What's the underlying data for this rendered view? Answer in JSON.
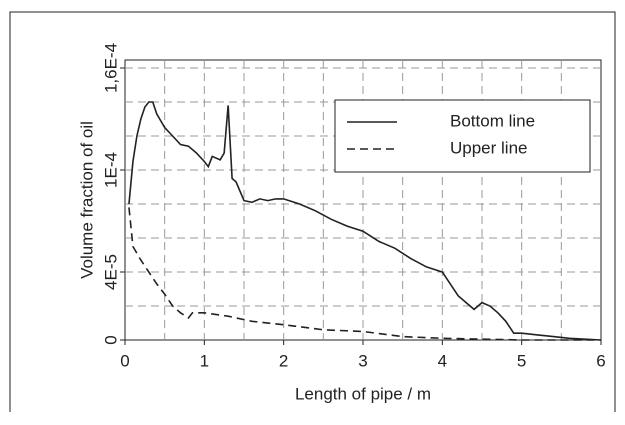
{
  "chart_data": {
    "type": "line",
    "xlabel": "Length of pipe / m",
    "ylabel": "Volume fraction of oil",
    "xlim": [
      0,
      6
    ],
    "xticks": [
      0,
      1,
      2,
      3,
      4,
      5,
      6
    ],
    "xgrid": [
      0.5,
      1,
      1.5,
      2,
      2.5,
      3,
      3.5,
      4,
      4.5,
      5,
      5.5
    ],
    "ylim": [
      0,
      0.00016
    ],
    "yticks": [
      {
        "value": 0,
        "label": "0"
      },
      {
        "value": 4e-05,
        "label": "4E-5"
      },
      {
        "value": 0.0001,
        "label": "1E-4"
      },
      {
        "value": 0.00016,
        "label": "1,6E-4"
      }
    ],
    "ygrid": [
      2e-05,
      4e-05,
      6e-05,
      8e-05,
      0.0001,
      0.00012,
      0.00014,
      0.00016
    ],
    "grid": true,
    "legend": "upper right",
    "series": [
      {
        "name": "Bottom line",
        "color": "#222222",
        "dash": "solid",
        "x": [
          0.05,
          0.1,
          0.15,
          0.2,
          0.25,
          0.3,
          0.35,
          0.4,
          0.5,
          0.6,
          0.7,
          0.8,
          0.9,
          1.0,
          1.05,
          1.1,
          1.2,
          1.25,
          1.3,
          1.35,
          1.4,
          1.5,
          1.6,
          1.7,
          1.8,
          1.9,
          2.0,
          2.2,
          2.4,
          2.6,
          2.8,
          3.0,
          3.2,
          3.4,
          3.6,
          3.8,
          4.0,
          4.1,
          4.2,
          4.3,
          4.4,
          4.5,
          4.6,
          4.7,
          4.8,
          4.9,
          5.0,
          5.2,
          5.4,
          5.6,
          5.8,
          6.0
        ],
        "values": [
          8e-05,
          0.000105,
          0.00012,
          0.00013,
          0.000137,
          0.00014,
          0.00014,
          0.000133,
          0.000125,
          0.00012,
          0.000115,
          0.000114,
          0.00011,
          0.000105,
          0.000102,
          0.000108,
          0.000106,
          0.00011,
          0.000138,
          9.5e-05,
          9.3e-05,
          8.2e-05,
          8.1e-05,
          8.3e-05,
          8.2e-05,
          8.3e-05,
          8.3e-05,
          8e-05,
          7.6e-05,
          7.1e-05,
          6.7e-05,
          6.4e-05,
          5.8e-05,
          5.4e-05,
          4.8e-05,
          4.3e-05,
          4e-05,
          3.3e-05,
          2.6e-05,
          2.2e-05,
          1.8e-05,
          2.2e-05,
          2e-05,
          1.6e-05,
          1.1e-05,
          4e-06,
          4e-06,
          3e-06,
          2e-06,
          1e-06,
          5e-07,
          0
        ]
      },
      {
        "name": "Upper line",
        "color": "#222222",
        "dash": "dashed",
        "x": [
          0.05,
          0.1,
          0.2,
          0.3,
          0.4,
          0.5,
          0.6,
          0.7,
          0.8,
          0.85,
          1.0,
          1.3,
          1.6,
          2.0,
          2.5,
          3.0,
          3.5,
          4.0,
          5.0,
          6.0
        ],
        "values": [
          7.8e-05,
          5.5e-05,
          4.7e-05,
          4e-05,
          3.3e-05,
          2.7e-05,
          2e-05,
          1.6e-05,
          1.3e-05,
          1.6e-05,
          1.6e-05,
          1.4e-05,
          1.1e-05,
          9e-06,
          6e-06,
          5e-06,
          2e-06,
          1e-06,
          0,
          0
        ]
      }
    ]
  }
}
